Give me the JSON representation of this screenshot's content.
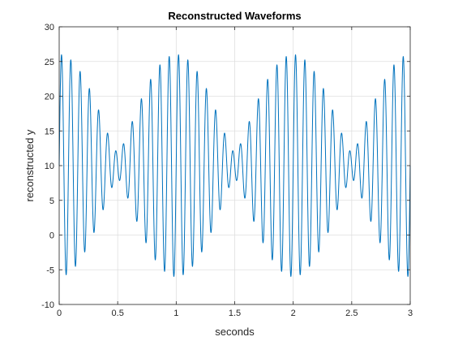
{
  "chart_data": {
    "type": "line",
    "title": "Reconstructed Waveforms",
    "xlabel": "seconds",
    "ylabel": "reconstructed y",
    "xlim": [
      0,
      3
    ],
    "ylim": [
      -10,
      30
    ],
    "xticks": [
      0,
      0.5,
      1,
      1.5,
      2,
      2.5,
      3
    ],
    "xtick_labels": [
      "0",
      "0.5",
      "1",
      "1.5",
      "2",
      "2.5",
      "3"
    ],
    "yticks": [
      -10,
      -5,
      0,
      5,
      10,
      15,
      20,
      25,
      30
    ],
    "ytick_labels": [
      "-10",
      "-5",
      "0",
      "5",
      "10",
      "15",
      "20",
      "25",
      "30"
    ],
    "grid": true,
    "series": [
      {
        "color": "#0072BD",
        "formula": "y = 10 + 9*sin(2*pi*13*t) + 7*sin(2*pi*12*t)",
        "t_range": [
          0,
          3
        ],
        "samples": 3000
      }
    ]
  }
}
